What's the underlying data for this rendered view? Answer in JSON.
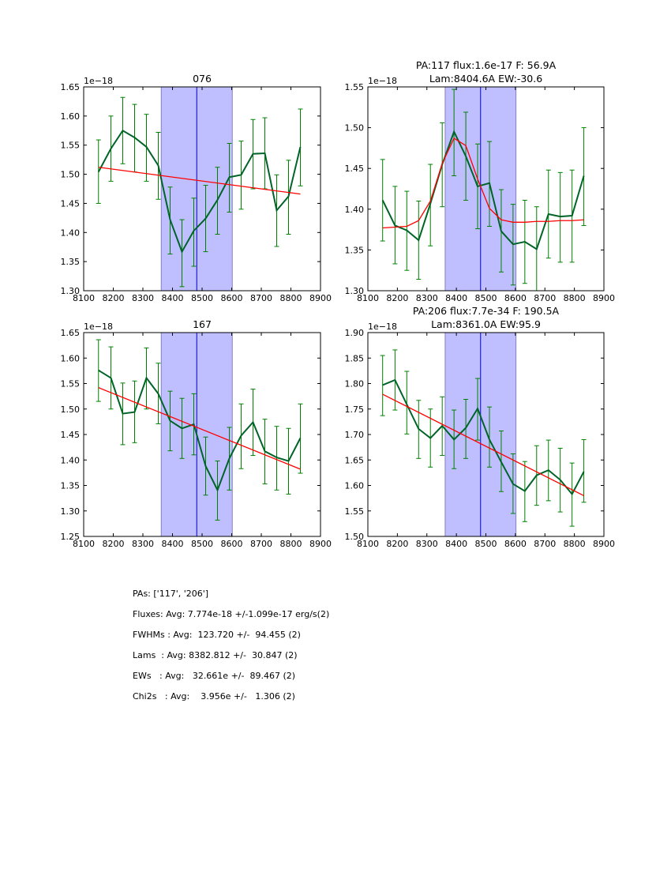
{
  "chart_data": [
    {
      "type": "line",
      "title": "076",
      "title_lines": [
        "076"
      ],
      "offset_label": "1e−18",
      "xlim": [
        8100,
        8900
      ],
      "ylim": [
        1.3,
        1.65
      ],
      "xticks": [
        8100,
        8200,
        8300,
        8400,
        8500,
        8600,
        8700,
        8800,
        8900
      ],
      "xtick_labels": [
        "8100",
        "8200",
        "8300",
        "8400",
        "8500",
        "8600",
        "8700",
        "8800",
        "8900"
      ],
      "yticks": [
        1.3,
        1.35,
        1.4,
        1.45,
        1.5,
        1.55,
        1.6,
        1.65
      ],
      "ytick_labels": [
        "1.30",
        "1.35",
        "1.40",
        "1.45",
        "1.50",
        "1.55",
        "1.60",
        "1.65"
      ],
      "band": [
        8362,
        8602
      ],
      "vline": 8482,
      "x": [
        8150,
        8192,
        8232,
        8272,
        8312,
        8352,
        8392,
        8432,
        8472,
        8512,
        8552,
        8592,
        8632,
        8672,
        8712,
        8752,
        8792,
        8832
      ],
      "series": [
        {
          "name": "flux",
          "color": "#006428",
          "values": [
            1.504,
            1.544,
            1.575,
            1.563,
            1.547,
            1.515,
            1.422,
            1.367,
            1.403,
            1.424,
            1.456,
            1.495,
            1.499,
            1.535,
            1.536,
            1.438,
            1.462,
            1.547
          ],
          "err_low": [
            1.45,
            1.488,
            1.518,
            1.504,
            1.488,
            1.457,
            1.363,
            1.307,
            1.342,
            1.367,
            1.397,
            1.435,
            1.44,
            1.475,
            1.475,
            1.376,
            1.397,
            1.48
          ],
          "err_high": [
            1.559,
            1.6,
            1.632,
            1.62,
            1.603,
            1.572,
            1.478,
            1.422,
            1.459,
            1.481,
            1.512,
            1.553,
            1.557,
            1.594,
            1.597,
            1.499,
            1.524,
            1.612
          ]
        },
        {
          "name": "fit",
          "color": "#ff0000",
          "x": [
            8150,
            8832
          ],
          "values": [
            1.512,
            1.466
          ]
        }
      ]
    },
    {
      "type": "line",
      "title": "PA:117 flux:1.6e-17 F: 56.9A Lam:8404.6A EW:-30.6",
      "title_lines": [
        "PA:117 flux:1.6e-17 F: 56.9A",
        "Lam:8404.6A EW:-30.6"
      ],
      "offset_label": "1e−18",
      "xlim": [
        8100,
        8900
      ],
      "ylim": [
        1.3,
        1.55
      ],
      "xticks": [
        8100,
        8200,
        8300,
        8400,
        8500,
        8600,
        8700,
        8800,
        8900
      ],
      "xtick_labels": [
        "8100",
        "8200",
        "8300",
        "8400",
        "8500",
        "8600",
        "8700",
        "8800",
        "8900"
      ],
      "yticks": [
        1.3,
        1.35,
        1.4,
        1.45,
        1.5,
        1.55
      ],
      "ytick_labels": [
        "1.30",
        "1.35",
        "1.40",
        "1.45",
        "1.50",
        "1.55"
      ],
      "band": [
        8362,
        8602
      ],
      "vline": 8482,
      "x": [
        8150,
        8192,
        8232,
        8272,
        8312,
        8352,
        8392,
        8432,
        8472,
        8512,
        8552,
        8592,
        8632,
        8672,
        8712,
        8752,
        8792,
        8832
      ],
      "series": [
        {
          "name": "flux",
          "color": "#006428",
          "values": [
            1.411,
            1.38,
            1.374,
            1.362,
            1.407,
            1.455,
            1.495,
            1.465,
            1.428,
            1.432,
            1.373,
            1.357,
            1.36,
            1.351,
            1.394,
            1.391,
            1.392,
            1.441
          ],
          "err_low": [
            1.361,
            1.333,
            1.325,
            1.314,
            1.355,
            1.403,
            1.441,
            1.411,
            1.376,
            1.379,
            1.323,
            1.307,
            1.309,
            1.3,
            1.34,
            1.335,
            1.335,
            1.38
          ],
          "err_high": [
            1.461,
            1.428,
            1.422,
            1.41,
            1.455,
            1.506,
            1.547,
            1.519,
            1.48,
            1.483,
            1.424,
            1.406,
            1.411,
            1.403,
            1.448,
            1.445,
            1.448,
            1.5
          ]
        },
        {
          "name": "fit",
          "color": "#ff0000",
          "x": [
            8150,
            8192,
            8232,
            8272,
            8312,
            8352,
            8392,
            8432,
            8472,
            8512,
            8552,
            8592,
            8632,
            8672,
            8712,
            8752,
            8792,
            8832
          ],
          "values": [
            1.377,
            1.378,
            1.379,
            1.386,
            1.41,
            1.456,
            1.487,
            1.478,
            1.437,
            1.401,
            1.387,
            1.384,
            1.384,
            1.385,
            1.385,
            1.386,
            1.386,
            1.387
          ]
        }
      ]
    },
    {
      "type": "line",
      "title": "167",
      "title_lines": [
        "167"
      ],
      "offset_label": "1e−18",
      "xlim": [
        8100,
        8900
      ],
      "ylim": [
        1.25,
        1.65
      ],
      "xticks": [
        8100,
        8200,
        8300,
        8400,
        8500,
        8600,
        8700,
        8800,
        8900
      ],
      "xtick_labels": [
        "8100",
        "8200",
        "8300",
        "8400",
        "8500",
        "8600",
        "8700",
        "8800",
        "8900"
      ],
      "yticks": [
        1.25,
        1.3,
        1.35,
        1.4,
        1.45,
        1.5,
        1.55,
        1.6,
        1.65
      ],
      "ytick_labels": [
        "1.25",
        "1.30",
        "1.35",
        "1.40",
        "1.45",
        "1.50",
        "1.55",
        "1.60",
        "1.65"
      ],
      "band": [
        8362,
        8602
      ],
      "vline": 8482,
      "x": [
        8150,
        8192,
        8232,
        8272,
        8312,
        8352,
        8392,
        8432,
        8472,
        8512,
        8552,
        8592,
        8632,
        8672,
        8712,
        8752,
        8792,
        8832
      ],
      "series": [
        {
          "name": "flux",
          "color": "#006428",
          "values": [
            1.576,
            1.561,
            1.491,
            1.494,
            1.561,
            1.53,
            1.477,
            1.462,
            1.47,
            1.388,
            1.341,
            1.403,
            1.448,
            1.474,
            1.417,
            1.405,
            1.398,
            1.443
          ],
          "err_low": [
            1.515,
            1.5,
            1.43,
            1.434,
            1.5,
            1.471,
            1.418,
            1.403,
            1.41,
            1.331,
            1.282,
            1.341,
            1.383,
            1.409,
            1.353,
            1.341,
            1.333,
            1.374
          ],
          "err_high": [
            1.636,
            1.622,
            1.551,
            1.555,
            1.62,
            1.59,
            1.535,
            1.521,
            1.53,
            1.445,
            1.398,
            1.464,
            1.51,
            1.539,
            1.48,
            1.466,
            1.462,
            1.51
          ]
        },
        {
          "name": "fit",
          "color": "#ff0000",
          "x": [
            8150,
            8832
          ],
          "values": [
            1.542,
            1.382
          ]
        }
      ]
    },
    {
      "type": "line",
      "title": "PA:206 flux:7.7e-34 F: 190.5A Lam:8361.0A EW:95.9",
      "title_lines": [
        "PA:206 flux:7.7e-34 F: 190.5A",
        "Lam:8361.0A EW:95.9"
      ],
      "offset_label": "1e−18",
      "xlim": [
        8100,
        8900
      ],
      "ylim": [
        1.5,
        1.9
      ],
      "xticks": [
        8100,
        8200,
        8300,
        8400,
        8500,
        8600,
        8700,
        8800,
        8900
      ],
      "xtick_labels": [
        "8100",
        "8200",
        "8300",
        "8400",
        "8500",
        "8600",
        "8700",
        "8800",
        "8900"
      ],
      "yticks": [
        1.5,
        1.55,
        1.6,
        1.65,
        1.7,
        1.75,
        1.8,
        1.85,
        1.9
      ],
      "ytick_labels": [
        "1.50",
        "1.55",
        "1.60",
        "1.65",
        "1.70",
        "1.75",
        "1.80",
        "1.85",
        "1.90"
      ],
      "band": [
        8362,
        8602
      ],
      "vline": 8482,
      "x": [
        8150,
        8192,
        8232,
        8272,
        8312,
        8352,
        8392,
        8432,
        8472,
        8512,
        8552,
        8592,
        8632,
        8672,
        8712,
        8752,
        8792,
        8832
      ],
      "series": [
        {
          "name": "flux",
          "color": "#006428",
          "values": [
            1.797,
            1.807,
            1.759,
            1.711,
            1.693,
            1.717,
            1.69,
            1.713,
            1.751,
            1.69,
            1.646,
            1.603,
            1.589,
            1.62,
            1.63,
            1.611,
            1.583,
            1.627
          ],
          "err_low": [
            1.737,
            1.748,
            1.701,
            1.653,
            1.636,
            1.659,
            1.633,
            1.653,
            1.689,
            1.636,
            1.588,
            1.545,
            1.529,
            1.561,
            1.57,
            1.548,
            1.52,
            1.567
          ],
          "err_high": [
            1.855,
            1.866,
            1.824,
            1.767,
            1.75,
            1.774,
            1.748,
            1.769,
            1.81,
            1.754,
            1.707,
            1.662,
            1.647,
            1.678,
            1.689,
            1.673,
            1.644,
            1.69
          ]
        },
        {
          "name": "fit",
          "color": "#ff0000",
          "x": [
            8150,
            8832
          ],
          "values": [
            1.779,
            1.58
          ]
        }
      ]
    }
  ],
  "summary": {
    "lines": [
      "PAs: ['117', '206']",
      "Fluxes: Avg: 7.774e-18 +/-1.099e-17 erg/s(2)",
      "FWHMs : Avg:  123.720 +/-  94.455 (2)",
      "Lams  : Avg: 8382.812 +/-  30.847 (2)",
      "EWs   : Avg:   32.661e +/-  89.467 (2)",
      "Chi2s   : Avg:    3.956e +/-   1.306 (2)"
    ]
  },
  "colors": {
    "band_fill": "#bfbfff",
    "band_edge": "#8080c0",
    "vline": "#0000cc",
    "errorbar": "#008000"
  }
}
